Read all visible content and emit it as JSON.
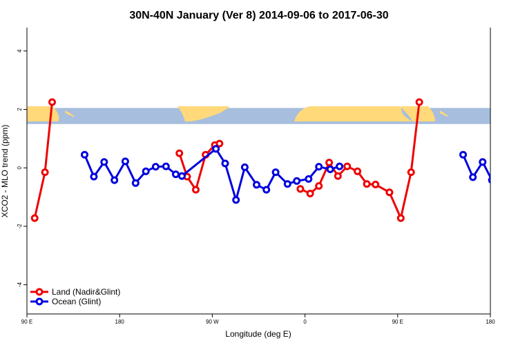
{
  "chart_data": {
    "type": "line",
    "title": "30N-40N January (Ver 8)   2014-09-06 to 2017-06-30",
    "xlabel": "Longitude (deg E)",
    "ylabel": "XCO2 - MLO trend (ppm)",
    "xlim": [
      90,
      540
    ],
    "ylim": [
      -5,
      4.8
    ],
    "x_ticks": [
      {
        "value": 90,
        "label": "90 E"
      },
      {
        "value": 180,
        "label": "180"
      },
      {
        "value": 270,
        "label": "90 W"
      },
      {
        "value": 360,
        "label": "0"
      },
      {
        "value": 450,
        "label": "90 E"
      },
      {
        "value": 540,
        "label": "180"
      }
    ],
    "y_ticks": [
      {
        "value": -4,
        "label": "-4"
      },
      {
        "value": -2,
        "label": "-2"
      },
      {
        "value": 0,
        "label": "0"
      },
      {
        "value": 2,
        "label": "2"
      },
      {
        "value": 4,
        "label": "4"
      }
    ],
    "legend_position": "bottom-left",
    "map_strip": {
      "y_range": [
        1.5,
        2.05
      ],
      "ocean_color": "#A7BEDE",
      "land_color": "#FFD97A"
    },
    "series": [
      {
        "name": "Land (Nadir&Glint)",
        "color": "#EE0000",
        "segments": [
          [
            [
              97.5,
              -1.72
            ],
            [
              107.5,
              -0.15
            ],
            [
              114.5,
              2.25
            ]
          ],
          [
            [
              238,
              0.5
            ],
            [
              245.5,
              -0.3
            ],
            [
              254,
              -0.75
            ],
            [
              263.5,
              0.45
            ],
            [
              272.5,
              0.78
            ],
            [
              277,
              0.83
            ]
          ],
          [
            [
              355.5,
              -0.72
            ],
            [
              365,
              -0.88
            ],
            [
              373.5,
              -0.62
            ],
            [
              383.5,
              0.18
            ],
            [
              392,
              -0.28
            ],
            [
              401,
              0.05
            ],
            [
              411,
              -0.12
            ],
            [
              420,
              -0.55
            ],
            [
              428.5,
              -0.57
            ],
            [
              442,
              -0.84
            ],
            [
              453,
              -1.72
            ],
            [
              463,
              -0.15
            ],
            [
              471,
              2.25
            ]
          ]
        ]
      },
      {
        "name": "Ocean (Glint)",
        "color": "#0000DD",
        "segments": [
          [
            [
              146,
              0.45
            ],
            [
              155,
              -0.3
            ],
            [
              165,
              0.2
            ],
            [
              175,
              -0.42
            ],
            [
              185.5,
              0.22
            ],
            [
              195.5,
              -0.52
            ],
            [
              205.5,
              -0.12
            ],
            [
              215,
              0.04
            ],
            [
              225,
              0.05
            ],
            [
              234.5,
              -0.22
            ],
            [
              240.5,
              -0.28
            ],
            [
              273.5,
              0.65
            ],
            [
              282.5,
              0.15
            ],
            [
              293,
              -1.1
            ],
            [
              301.5,
              0.02
            ],
            [
              313,
              -0.58
            ],
            [
              322.5,
              -0.75
            ],
            [
              331.5,
              -0.15
            ],
            [
              343,
              -0.55
            ],
            [
              352,
              -0.45
            ],
            [
              363.5,
              -0.38
            ],
            [
              373.5,
              0.04
            ],
            [
              384.5,
              -0.05
            ],
            [
              393.5,
              0.05
            ]
          ],
          [
            [
              513.5,
              0.45
            ],
            [
              523,
              -0.32
            ],
            [
              532.5,
              0.2
            ],
            [
              541.5,
              -0.42
            ]
          ]
        ]
      }
    ]
  }
}
